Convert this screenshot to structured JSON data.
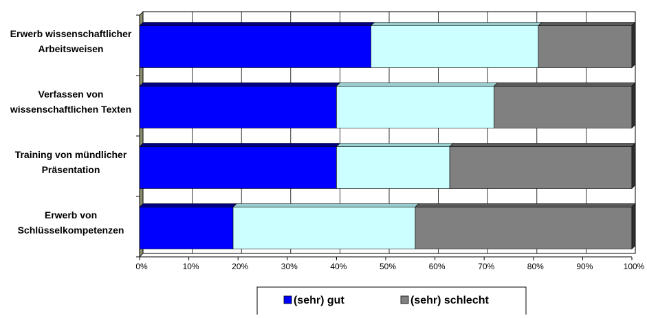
{
  "chart_data": {
    "type": "bar",
    "orientation": "horizontal",
    "stacked": "percent",
    "categories": [
      "Erwerb wissenschaftlicher Arbeitsweisen",
      "Verfassen von wissenschaftlichen Texten",
      "Training von mündlicher Präsentation",
      "Erwerb von Schlüsselkompetenzen"
    ],
    "category_lines": [
      [
        "Erwerb wissenschaftlicher",
        "Arbeitsweisen"
      ],
      [
        "Verfassen von",
        "wissenschaftlichen Texten"
      ],
      [
        "Training von mündlicher",
        "Präsentation"
      ],
      [
        "Erwerb von",
        "Schlüsselkompetenzen"
      ]
    ],
    "series": [
      {
        "name": "(sehr) gut",
        "values": [
          47,
          40,
          40,
          19
        ],
        "color": "#0000ff",
        "top_color": "#000080",
        "in_legend": true
      },
      {
        "name": "",
        "values": [
          34,
          32,
          23,
          37
        ],
        "color": "#ccffff",
        "top_color": "#99cccc",
        "in_legend": false
      },
      {
        "name": "(sehr) schlecht",
        "values": [
          19,
          28,
          37,
          44
        ],
        "color": "#808080",
        "top_color": "#5a5a5a",
        "in_legend": true
      }
    ],
    "x_ticks": [
      "0%",
      "10%",
      "20%",
      "30%",
      "40%",
      "50%",
      "60%",
      "70%",
      "80%",
      "90%",
      "100%"
    ],
    "xlim": [
      0,
      100
    ],
    "grid": true,
    "legend_position": "bottom",
    "xlabel": "",
    "ylabel": "",
    "title": ""
  }
}
